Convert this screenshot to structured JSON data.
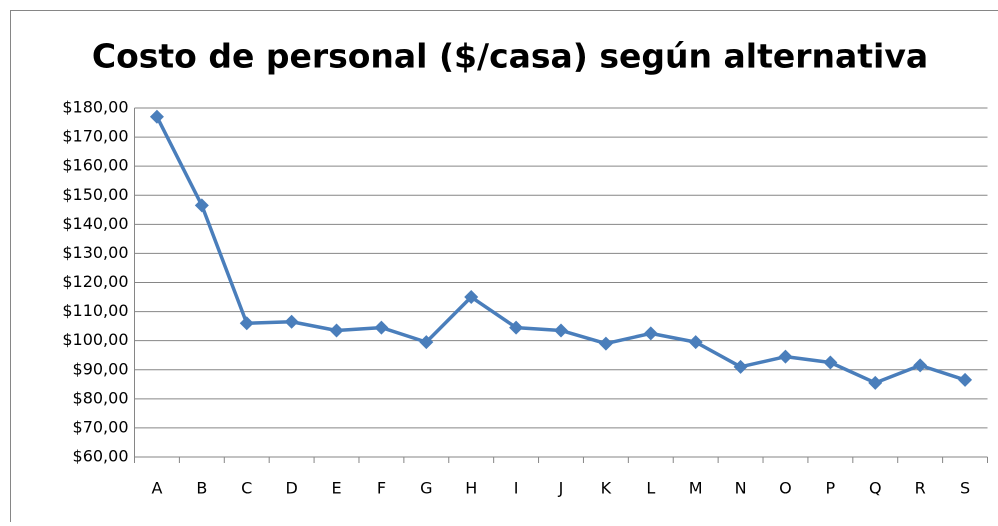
{
  "chart_data": {
    "type": "line",
    "title": "Costo de personal ($/casa) según alternativa",
    "categories": [
      "A",
      "B",
      "C",
      "D",
      "E",
      "F",
      "G",
      "H",
      "I",
      "J",
      "K",
      "L",
      "M",
      "N",
      "O",
      "P",
      "Q",
      "R",
      "S"
    ],
    "values": [
      177,
      146.5,
      106,
      106.5,
      103.5,
      104.5,
      99.5,
      115,
      104.5,
      103.5,
      99,
      102.5,
      99.5,
      91,
      94.5,
      92.5,
      85.5,
      91.5,
      86.5
    ],
    "color": "#4a7ebb",
    "ylim": [
      60,
      180
    ],
    "yticks": [
      {
        "value": 60,
        "label": "$60,00"
      },
      {
        "value": 70,
        "label": "$70,00"
      },
      {
        "value": 80,
        "label": "$80,00"
      },
      {
        "value": 90,
        "label": "$90,00"
      },
      {
        "value": 100,
        "label": "$100,00"
      },
      {
        "value": 110,
        "label": "$110,00"
      },
      {
        "value": 120,
        "label": "$120,00"
      },
      {
        "value": 130,
        "label": "$130,00"
      },
      {
        "value": 140,
        "label": "$140,00"
      },
      {
        "value": 150,
        "label": "$150,00"
      },
      {
        "value": 160,
        "label": "$160,00"
      },
      {
        "value": 170,
        "label": "$170,00"
      },
      {
        "value": 180,
        "label": "$180,00"
      }
    ],
    "grid": true
  }
}
